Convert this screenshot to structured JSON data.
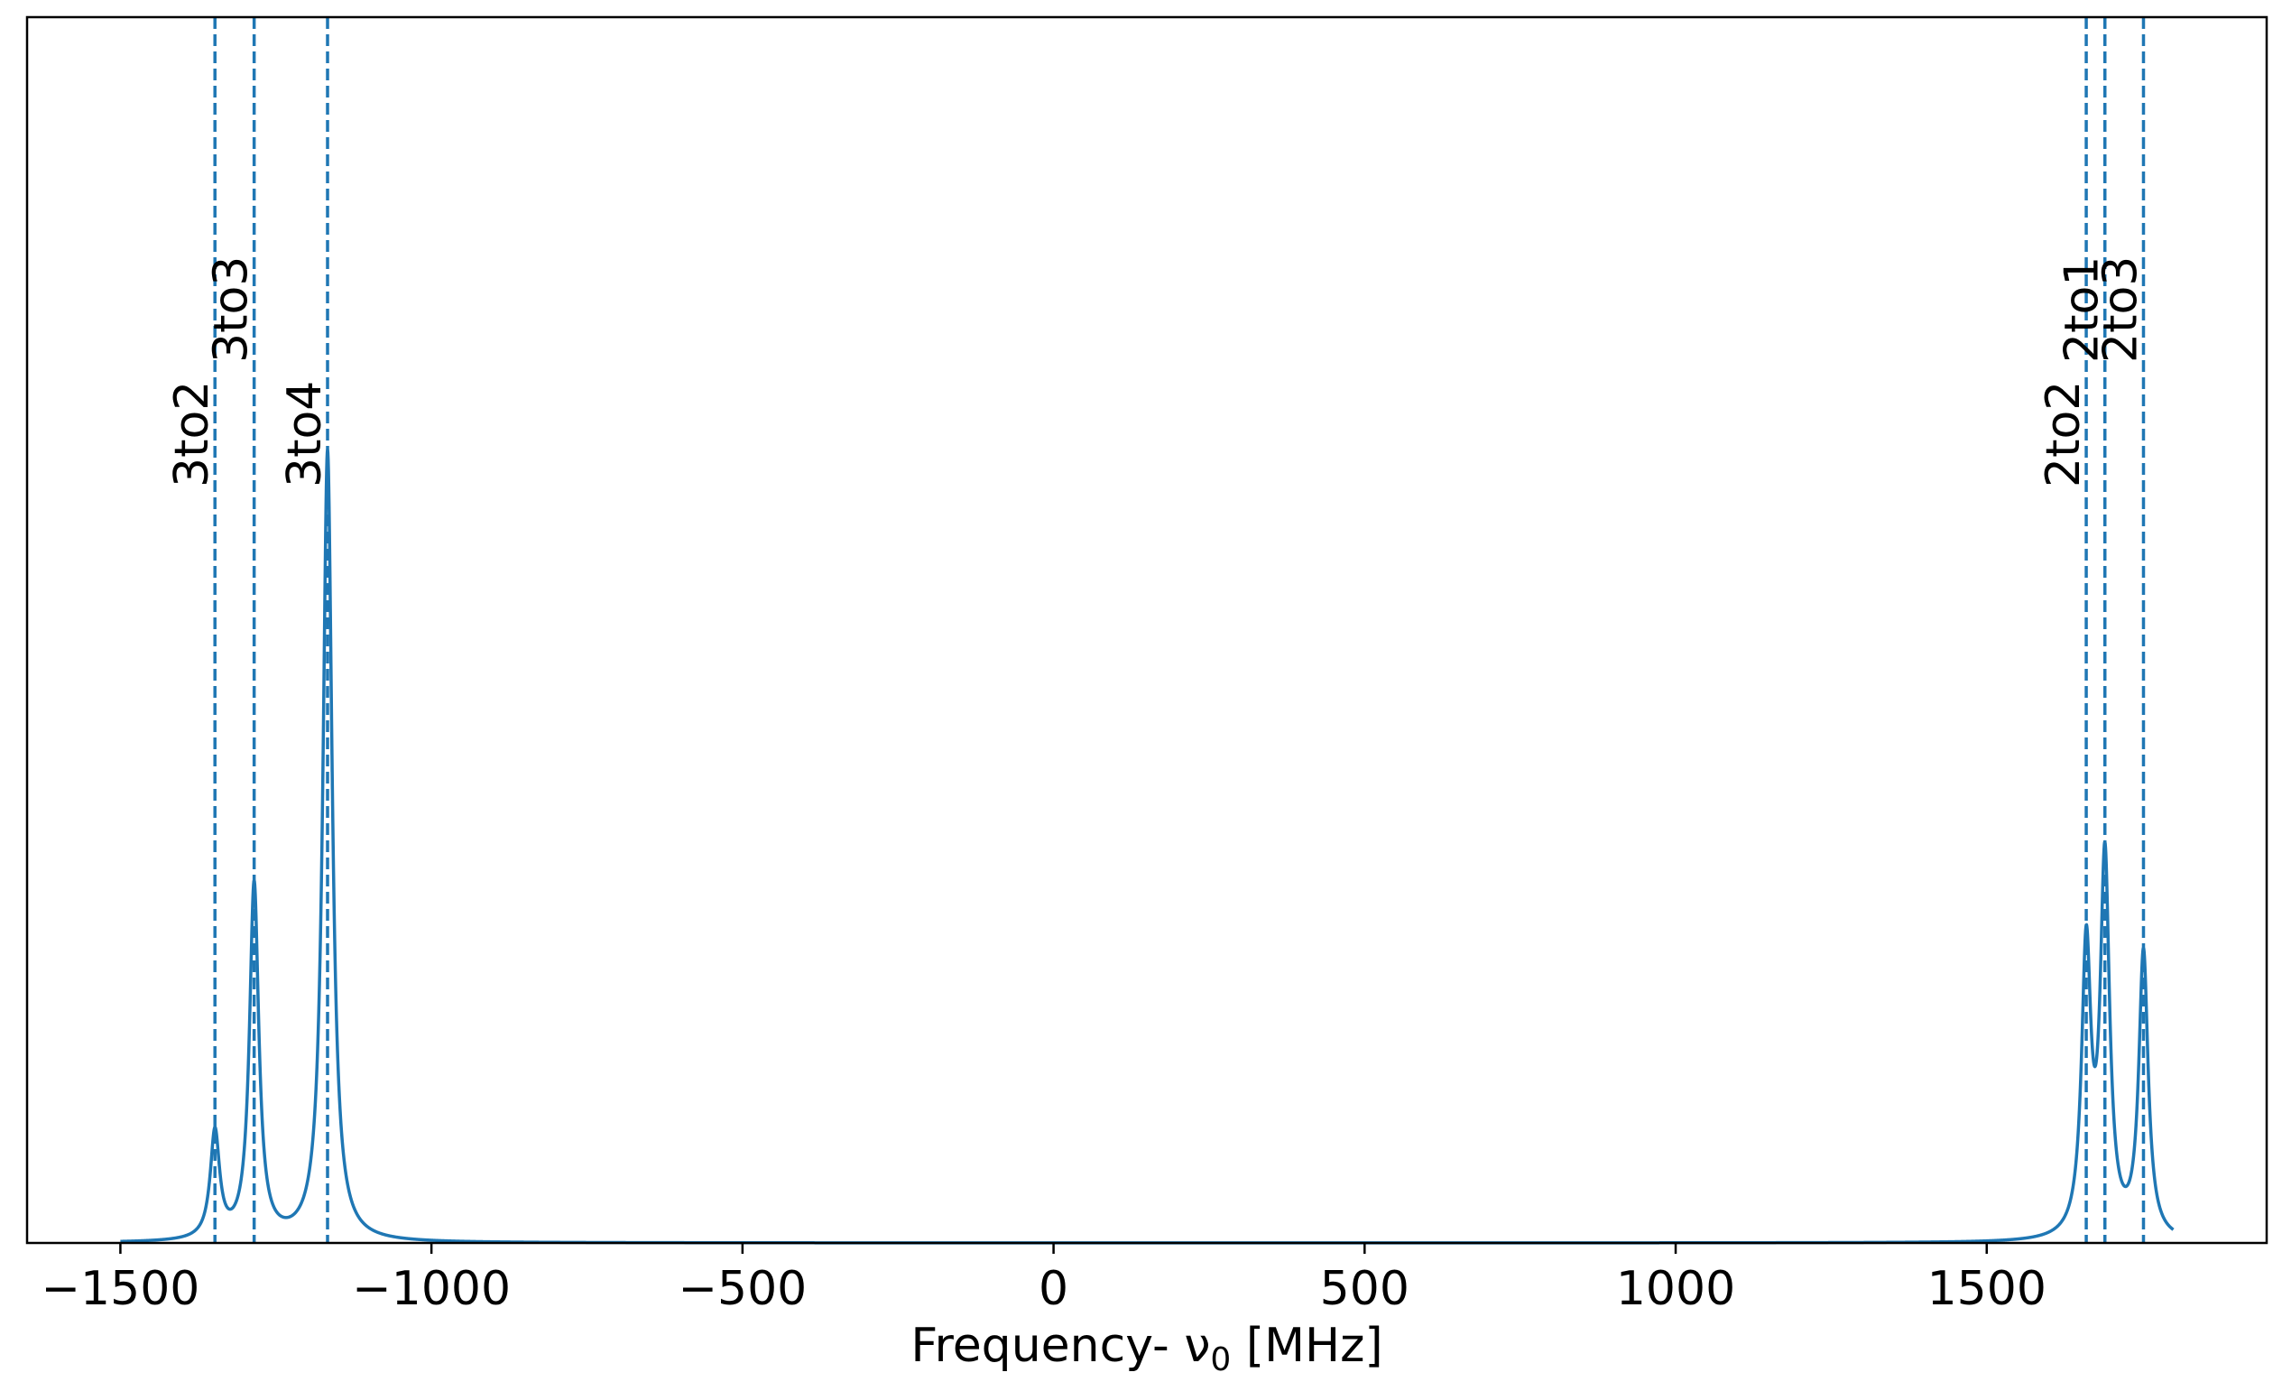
{
  "chart_data": {
    "type": "line",
    "title": "",
    "xlabel": "Frequency- ν",
    "xlabel_sub": "0",
    "xlabel_unit": " [MHz]",
    "ylabel": "",
    "xlim": [
      -1650,
      1950
    ],
    "ylim": [
      0,
      1.55
    ],
    "grid": false,
    "y_ticks_shown": false,
    "x_ticks": [
      {
        "value": -1500,
        "label": "−1500"
      },
      {
        "value": -1000,
        "label": "−1000"
      },
      {
        "value": -500,
        "label": "−500"
      },
      {
        "value": 0,
        "label": "0"
      },
      {
        "value": 500,
        "label": "500"
      },
      {
        "value": 1000,
        "label": "1000"
      },
      {
        "value": 1500,
        "label": "1500"
      },
      {
        "value": 2000,
        "label": ""
      }
    ],
    "curve": {
      "color": "#1f77b4",
      "x_range": [
        -1500,
        1800
      ],
      "linewidth_hint": "normal",
      "peaks": [
        {
          "center": -1348,
          "height": 0.135,
          "width": 9
        },
        {
          "center": -1285,
          "height": 0.45,
          "width": 9
        },
        {
          "center": -1167,
          "height": 1.0,
          "width": 9
        },
        {
          "center": 1660,
          "height": 0.36,
          "width": 9
        },
        {
          "center": 1690,
          "height": 0.47,
          "width": 9
        },
        {
          "center": 1752,
          "height": 0.36,
          "width": 9
        }
      ]
    },
    "vlines": [
      {
        "x": -1348,
        "label": "3to2",
        "label_level": "low"
      },
      {
        "x": -1285,
        "label": "3to3",
        "label_level": "high"
      },
      {
        "x": -1167,
        "label": "3to4",
        "label_level": "low"
      },
      {
        "x": 1660,
        "label": "2to2",
        "label_level": "low"
      },
      {
        "x": 1690,
        "label": "2to1",
        "label_level": "high"
      },
      {
        "x": 1752,
        "label": "2to3",
        "label_level": "high"
      }
    ],
    "vline_color": "#1f77b4",
    "vline_style": "dashed"
  }
}
